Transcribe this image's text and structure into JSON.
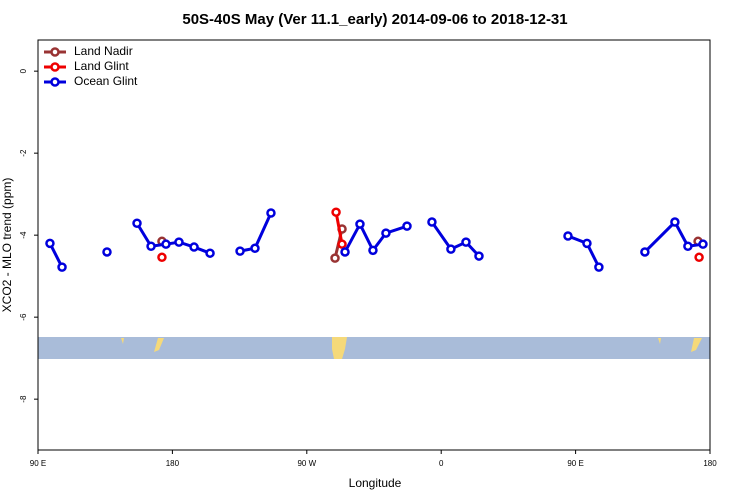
{
  "chart_data": {
    "type": "line",
    "title": "50S-40S May (Ver 11.1_early)   2014-09-06 to 2018-12-31",
    "x_label": "Longitude",
    "y_label": "XCO2 - MLO trend (ppm)",
    "xlim": [
      90,
      540
    ],
    "xticks": [
      {
        "value": 90,
        "label": "90 E"
      },
      180,
      {
        "value": 270,
        "label": "90 W"
      },
      {
        "value": 360,
        "label": "0"
      },
      {
        "value": 450,
        "label": "90 E"
      },
      {
        "value": 540,
        "label": "180"
      }
    ],
    "ylim": [
      -9.24,
      0.76
    ],
    "yticks": [
      0,
      -2,
      -4,
      -6,
      -8
    ],
    "legend": "top-left",
    "series": [
      {
        "name": "Land Nadir",
        "color": "#993333",
        "x": [
          173.0,
          null,
          288.9,
          293.6,
          null,
          532.0
        ],
        "values": [
          -4.15,
          null,
          -4.56,
          -3.85,
          null,
          -4.15
        ]
      },
      {
        "name": "Land Glint",
        "color": "#ee0000",
        "x": [
          173.0,
          null,
          289.6,
          293.6,
          null,
          532.7
        ],
        "values": [
          -4.54,
          null,
          -3.44,
          -4.22,
          null,
          -4.54
        ]
      },
      {
        "name": "Ocean Glint",
        "color": "#0000dd",
        "x": [
          98.0,
          106.1,
          null,
          136.2,
          null,
          156.3,
          165.7,
          175.7,
          184.4,
          194.5,
          205.2,
          null,
          225.3,
          235.3,
          246.0,
          null,
          295.6,
          305.6,
          314.3,
          323.0,
          337.1,
          null,
          353.8,
          366.5,
          376.6,
          385.3,
          null,
          444.9,
          457.6,
          465.6,
          null,
          496.4,
          516.5,
          525.2,
          535.3
        ],
        "values": [
          -4.2,
          -4.78,
          null,
          -4.41,
          null,
          -3.71,
          -4.27,
          -4.22,
          -4.17,
          -4.29,
          -4.44,
          null,
          -4.39,
          -4.32,
          -3.46,
          null,
          -4.41,
          -3.73,
          -4.37,
          -3.95,
          -3.78,
          null,
          -3.68,
          -4.34,
          -4.17,
          -4.51,
          null,
          -4.02,
          -4.2,
          -4.78,
          null,
          -4.41,
          -3.68,
          -4.27,
          -4.22
        ]
      }
    ]
  }
}
